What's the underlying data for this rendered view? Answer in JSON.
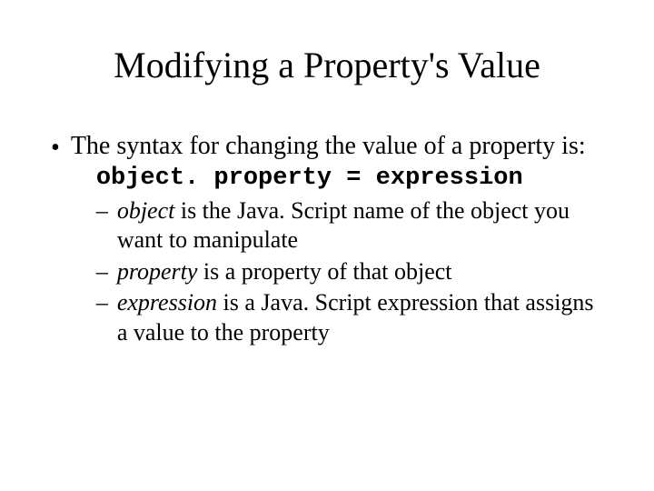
{
  "title": "Modifying a Property's Value",
  "bullet": {
    "leadin": "The syntax for changing the value of a property is:",
    "code": "object. property = expression",
    "sub": [
      {
        "term": "object",
        "rest": " is the Java. Script name of the object you want to manipulate"
      },
      {
        "term": "property",
        "rest": " is a property of that object"
      },
      {
        "term": "expression",
        "rest": " is a Java. Script expression that assigns a value to the property"
      }
    ]
  },
  "style": {
    "background_color": "#ffffff",
    "text_color": "#000000",
    "title_fontsize": 40,
    "body_fontsize": 28,
    "sub_fontsize": 26,
    "code_fontsize": 27,
    "font_family_body": "Times New Roman",
    "font_family_code": "Courier New"
  }
}
